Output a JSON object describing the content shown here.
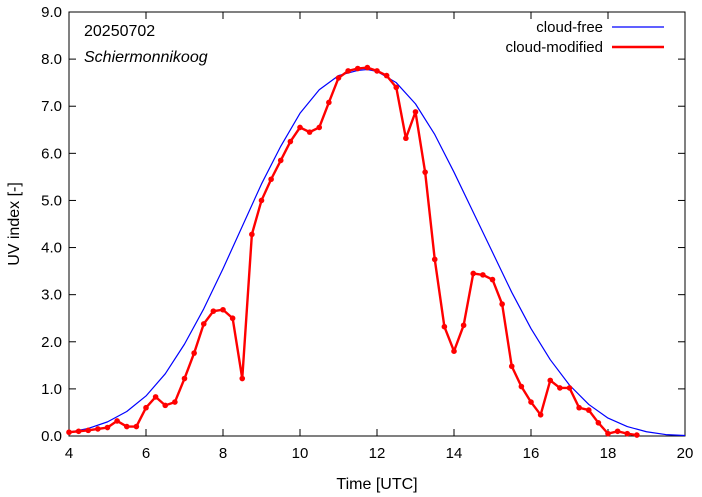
{
  "chart_data": {
    "type": "line",
    "annotations": {
      "date": "20250702",
      "station": "Schiermonnikoog"
    },
    "xlabel": "Time  [UTC]",
    "ylabel": "UV index  [-]",
    "xlim": [
      4,
      20
    ],
    "ylim": [
      0,
      9
    ],
    "xticks": [
      4,
      6,
      8,
      10,
      12,
      14,
      16,
      18,
      20
    ],
    "xtick_labels": [
      "4",
      "6",
      "8",
      "10",
      "12",
      "14",
      "16",
      "18",
      "20"
    ],
    "yticks": [
      0,
      1,
      2,
      3,
      4,
      5,
      6,
      7,
      8,
      9
    ],
    "ytick_labels": [
      "0.0",
      "1.0",
      "2.0",
      "3.0",
      "4.0",
      "5.0",
      "6.0",
      "7.0",
      "8.0",
      "9.0"
    ],
    "grid": false,
    "legend_position": "top-right",
    "series": [
      {
        "name": "cloud-free",
        "color": "#0000ff",
        "style": "line",
        "x": [
          4.0,
          4.5,
          5.0,
          5.5,
          6.0,
          6.5,
          7.0,
          7.5,
          8.0,
          8.5,
          9.0,
          9.5,
          10.0,
          10.5,
          11.0,
          11.5,
          11.75,
          12.0,
          12.5,
          13.0,
          13.5,
          14.0,
          14.5,
          15.0,
          15.5,
          16.0,
          16.5,
          17.0,
          17.5,
          18.0,
          18.5,
          19.0,
          19.5,
          20.0
        ],
        "y": [
          0.08,
          0.16,
          0.3,
          0.52,
          0.85,
          1.32,
          1.95,
          2.7,
          3.55,
          4.45,
          5.35,
          6.15,
          6.85,
          7.35,
          7.65,
          7.76,
          7.78,
          7.74,
          7.5,
          7.05,
          6.4,
          5.6,
          4.75,
          3.9,
          3.05,
          2.28,
          1.62,
          1.08,
          0.67,
          0.38,
          0.2,
          0.09,
          0.03,
          0.01
        ]
      },
      {
        "name": "cloud-modified",
        "color": "#ff0000",
        "style": "line+points",
        "x": [
          4.0,
          4.25,
          4.5,
          4.75,
          5.0,
          5.25,
          5.5,
          5.75,
          6.0,
          6.25,
          6.5,
          6.75,
          7.0,
          7.25,
          7.5,
          7.75,
          8.0,
          8.25,
          8.5,
          8.75,
          9.0,
          9.25,
          9.5,
          9.75,
          10.0,
          10.25,
          10.5,
          10.75,
          11.0,
          11.25,
          11.5,
          11.75,
          12.0,
          12.25,
          12.5,
          12.75,
          13.0,
          13.25,
          13.5,
          13.75,
          14.0,
          14.25,
          14.5,
          14.75,
          15.0,
          15.25,
          15.5,
          15.75,
          16.0,
          16.25,
          16.5,
          16.75,
          17.0,
          17.25,
          17.5,
          17.75,
          18.0,
          18.25,
          18.5,
          18.75
        ],
        "y": [
          0.08,
          0.1,
          0.12,
          0.15,
          0.18,
          0.32,
          0.2,
          0.2,
          0.6,
          0.83,
          0.65,
          0.72,
          1.22,
          1.76,
          2.38,
          2.65,
          2.68,
          2.5,
          1.22,
          4.28,
          5.0,
          5.45,
          5.85,
          6.25,
          6.55,
          6.45,
          6.55,
          7.08,
          7.6,
          7.75,
          7.8,
          7.82,
          7.75,
          7.65,
          7.4,
          6.32,
          6.88,
          5.6,
          3.75,
          2.32,
          1.8,
          2.35,
          3.45,
          3.42,
          3.32,
          2.8,
          1.48,
          1.05,
          0.72,
          0.45,
          1.18,
          1.02,
          1.02,
          0.6,
          0.55,
          0.28,
          0.05,
          0.1,
          0.05,
          0.02
        ]
      }
    ]
  }
}
